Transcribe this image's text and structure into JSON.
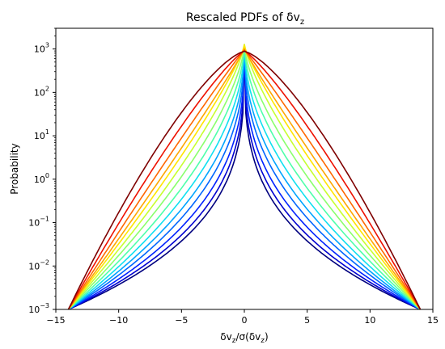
{
  "chart_data": {
    "type": "line",
    "title": "Rescaled PDFs of δv",
    "title_sub": "z",
    "xlabel": "δv",
    "ylabel": "Probability",
    "xlim": [
      -15,
      15
    ],
    "ylim": [
      0.001,
      3000
    ],
    "yscale": "log",
    "grid": false,
    "xticks": [
      -15,
      -10,
      -5,
      0,
      5,
      10,
      15
    ],
    "xtick_labels": [
      "−15",
      "−10",
      "−5",
      "0",
      "5",
      "10",
      "15"
    ],
    "yticks": [
      0.001,
      0.01,
      0.1,
      1,
      10,
      100,
      1000
    ],
    "ytick_labels": [
      {
        "base": "10",
        "exp": "−3"
      },
      {
        "base": "10",
        "exp": "−2"
      },
      {
        "base": "10",
        "exp": "−1"
      },
      {
        "base": "10",
        "exp": "0"
      },
      {
        "base": "10",
        "exp": "1"
      },
      {
        "base": "10",
        "exp": "2"
      },
      {
        "base": "10",
        "exp": "3"
      }
    ],
    "series": [
      {
        "color": "#00007f",
        "peak": 860,
        "shape": 0.3
      },
      {
        "color": "#0000d0",
        "peak": 900,
        "shape": 0.33
      },
      {
        "color": "#0022ff",
        "peak": 950,
        "shape": 0.37
      },
      {
        "color": "#0066ff",
        "peak": 1000,
        "shape": 0.42
      },
      {
        "color": "#00a4ff",
        "peak": 1050,
        "shape": 0.47
      },
      {
        "color": "#10e0f0",
        "peak": 1100,
        "shape": 0.53
      },
      {
        "color": "#4dffaa",
        "peak": 1150,
        "shape": 0.6
      },
      {
        "color": "#8aff6d",
        "peak": 1200,
        "shape": 0.68
      },
      {
        "color": "#c7ff30",
        "peak": 1300,
        "shape": 0.76
      },
      {
        "color": "#ffe600",
        "peak": 1200,
        "shape": 0.85
      },
      {
        "color": "#ffa700",
        "peak": 1000,
        "shape": 0.94
      },
      {
        "color": "#ff6800",
        "peak": 950,
        "shape": 1.05
      },
      {
        "color": "#ee1100",
        "peak": 900,
        "shape": 1.2
      },
      {
        "color": "#7f0000",
        "peak": 880,
        "shape": 1.4
      }
    ]
  }
}
